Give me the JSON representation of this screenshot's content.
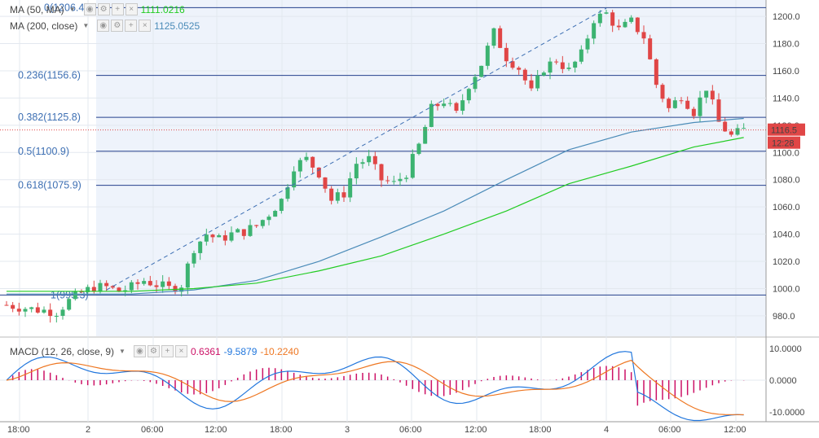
{
  "legend": {
    "ma50": {
      "label": "MA (50, MA)",
      "value": "1111.0216",
      "color": "#22cc22"
    },
    "ma200": {
      "label": "MA (200, close)",
      "value": "1125.0525",
      "color": "#4a8bb8"
    },
    "macd": {
      "label": "MACD (12, 26, close, 9)",
      "v1": "0.6361",
      "v2": "-9.5879",
      "v3": "-10.2240",
      "c1": "#cc1166",
      "c2": "#2277dd",
      "c3": "#ee7722"
    }
  },
  "price_tag": {
    "value": "1116.5",
    "time": "12:28",
    "color": "#e04646"
  },
  "chart_data": [
    {
      "type": "candlestick",
      "ylim": [
        965,
        1212
      ],
      "y_ticks": [
        980,
        1000,
        1020,
        1040,
        1060,
        1080,
        1100,
        1120,
        1140,
        1160,
        1180,
        1200
      ],
      "x_ticks": [
        "18:00",
        "2",
        "06:00",
        "12:00",
        "18:00",
        "3",
        "06:00",
        "12:00",
        "18:00",
        "4",
        "06:00",
        "12:00"
      ],
      "fib_levels": [
        {
          "label": "0(1206.4)",
          "value": 1206.4
        },
        {
          "label": "0.236(1156.6)",
          "value": 1156.6
        },
        {
          "label": "0.382(1125.8)",
          "value": 1125.8
        },
        {
          "label": "0.5(1100.9)",
          "value": 1100.9
        },
        {
          "label": "0.618(1075.9)",
          "value": 1075.9
        },
        {
          "label": "1(995.3)",
          "value": 995.3
        }
      ],
      "close_path": [
        [
          0,
          988
        ],
        [
          4,
          985
        ],
        [
          8,
          983
        ],
        [
          10,
          991
        ],
        [
          12,
          997
        ],
        [
          14,
          1001
        ],
        [
          16,
          1001
        ],
        [
          18,
          998
        ],
        [
          20,
          1001
        ],
        [
          22,
          1006
        ],
        [
          24,
          1003
        ],
        [
          26,
          1000
        ],
        [
          28,
          1003
        ],
        [
          30,
          1030
        ],
        [
          32,
          1040
        ],
        [
          34,
          1036
        ],
        [
          36,
          1040
        ],
        [
          38,
          1042
        ],
        [
          40,
          1046
        ],
        [
          42,
          1055
        ],
        [
          44,
          1065
        ],
        [
          46,
          1090
        ],
        [
          48,
          1095
        ],
        [
          50,
          1085
        ],
        [
          52,
          1065
        ],
        [
          54,
          1070
        ],
        [
          56,
          1092
        ],
        [
          58,
          1095
        ],
        [
          60,
          1080
        ],
        [
          62,
          1077
        ],
        [
          64,
          1085
        ],
        [
          66,
          1105
        ],
        [
          68,
          1132
        ],
        [
          70,
          1138
        ],
        [
          72,
          1128
        ],
        [
          74,
          1150
        ],
        [
          76,
          1165
        ],
        [
          78,
          1188
        ],
        [
          80,
          1170
        ],
        [
          82,
          1162
        ],
        [
          84,
          1144
        ],
        [
          86,
          1162
        ],
        [
          88,
          1168
        ],
        [
          90,
          1160
        ],
        [
          92,
          1172
        ],
        [
          94,
          1198
        ],
        [
          96,
          1202
        ],
        [
          98,
          1190
        ],
        [
          100,
          1196
        ],
        [
          102,
          1185
        ],
        [
          104,
          1150
        ],
        [
          106,
          1132
        ],
        [
          108,
          1142
        ],
        [
          110,
          1130
        ],
        [
          112,
          1148
        ],
        [
          114,
          1122
        ],
        [
          116,
          1112
        ],
        [
          118,
          1116.5
        ]
      ],
      "ma50": [
        [
          0,
          998
        ],
        [
          20,
          998
        ],
        [
          30,
          1000
        ],
        [
          40,
          1004
        ],
        [
          50,
          1013
        ],
        [
          60,
          1024
        ],
        [
          70,
          1040
        ],
        [
          80,
          1057
        ],
        [
          90,
          1077
        ],
        [
          100,
          1090
        ],
        [
          110,
          1104
        ],
        [
          118,
          1111
        ]
      ],
      "ma200": [
        [
          0,
          996
        ],
        [
          20,
          996
        ],
        [
          30,
          999
        ],
        [
          40,
          1006
        ],
        [
          50,
          1020
        ],
        [
          60,
          1038
        ],
        [
          70,
          1057
        ],
        [
          80,
          1080
        ],
        [
          90,
          1102
        ],
        [
          100,
          1115
        ],
        [
          110,
          1122
        ],
        [
          118,
          1125
        ]
      ],
      "trend_line": [
        [
          16,
          999
        ],
        [
          96,
          1206
        ]
      ]
    },
    {
      "type": "macd",
      "ylim": [
        -13,
        13
      ],
      "y_ticks": [
        "10.0000",
        "0.0000",
        "-10.0000"
      ]
    }
  ]
}
